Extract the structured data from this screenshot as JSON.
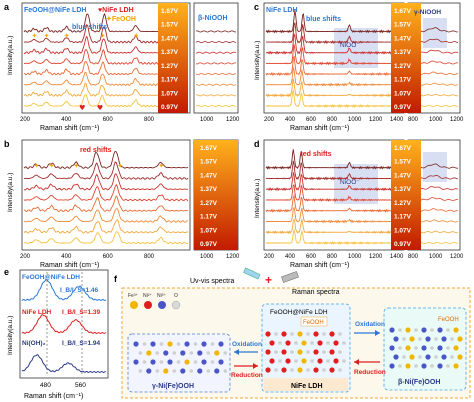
{
  "colors": {
    "curves": [
      "#f6c23e",
      "#f3a83a",
      "#ef8a37",
      "#ea6a34",
      "#e0452f",
      "#c9302c",
      "#a42a2a",
      "#7a2420",
      "#3e1a16"
    ],
    "gradient_top": "#ffa114",
    "gradient_bottom": "#c21b00",
    "feooh_marker": "#f2a400",
    "nife_marker": "#e01e1e",
    "accent_blue": "#2a78d6",
    "accent_red": "#e01e1e",
    "niooh_box": "#c9d1ee"
  },
  "voltages": [
    "1.67V",
    "1.57V",
    "1.47V",
    "1.37V",
    "1.27V",
    "1.17V",
    "1.07V",
    "0.97V"
  ],
  "chart_data": [
    {
      "type": "line",
      "panel": "a",
      "xlabel": "Raman shift (cm⁻¹)",
      "ylabel": "Intensity(a.u.)",
      "xlim": [
        200,
        800
      ],
      "xticks": [
        "200",
        "400",
        "600",
        "800"
      ],
      "xlim_right": [
        800,
        1200
      ],
      "xticks_right": [
        "1000",
        "1200"
      ],
      "legend": [
        "FeOOH@NiFe LDH",
        "NiFe LDH",
        "FeOOH"
      ],
      "annotations": [
        "blue shifts",
        "β-NiOOH"
      ],
      "feooh_peaks": [
        245,
        300,
        390,
        550,
        700
      ],
      "nife_peaks": [
        460,
        540
      ],
      "series": [
        {
          "name": "0.97V",
          "peaks": [
            [
              245,
              0.2
            ],
            [
              300,
              0.3
            ],
            [
              390,
              0.35
            ],
            [
              475,
              0.9
            ],
            [
              550,
              0.8
            ],
            [
              700,
              0.45
            ]
          ]
        },
        {
          "name": "1.07V",
          "peaks": [
            [
              245,
              0.2
            ],
            [
              300,
              0.3
            ],
            [
              390,
              0.35
            ],
            [
              475,
              0.9
            ],
            [
              550,
              0.8
            ],
            [
              700,
              0.45
            ]
          ]
        },
        {
          "name": "1.17V",
          "peaks": [
            [
              245,
              0.2
            ],
            [
              300,
              0.3
            ],
            [
              390,
              0.35
            ],
            [
              475,
              0.95
            ],
            [
              552,
              0.85
            ],
            [
              700,
              0.45
            ]
          ]
        },
        {
          "name": "1.27V",
          "peaks": [
            [
              245,
              0.2
            ],
            [
              300,
              0.3
            ],
            [
              390,
              0.35
            ],
            [
              477,
              1.0
            ],
            [
              553,
              0.9
            ],
            [
              700,
              0.45
            ]
          ]
        },
        {
          "name": "1.37V",
          "peaks": [
            [
              245,
              0.2
            ],
            [
              300,
              0.3
            ],
            [
              390,
              0.35
            ],
            [
              478,
              1.1
            ],
            [
              555,
              1.0
            ],
            [
              700,
              0.45
            ]
          ]
        },
        {
          "name": "1.47V",
          "peaks": [
            [
              245,
              0.2
            ],
            [
              300,
              0.3
            ],
            [
              390,
              0.35
            ],
            [
              480,
              1.2
            ],
            [
              557,
              1.1
            ],
            [
              700,
              0.45
            ]
          ]
        },
        {
          "name": "1.57V",
          "peaks": [
            [
              245,
              0.2
            ],
            [
              300,
              0.3
            ],
            [
              390,
              0.35
            ],
            [
              482,
              1.3
            ],
            [
              558,
              1.2
            ],
            [
              700,
              0.45
            ]
          ]
        },
        {
          "name": "1.67V",
          "peaks": [
            [
              245,
              0.2
            ],
            [
              300,
              0.3
            ],
            [
              390,
              0.35
            ],
            [
              484,
              1.4
            ],
            [
              560,
              1.3
            ],
            [
              700,
              0.45
            ]
          ]
        }
      ]
    },
    {
      "type": "line",
      "panel": "b",
      "xlabel": "Raman shift (cm⁻¹)",
      "ylabel": "Intensity(a.u.)",
      "xlim": [
        200,
        800
      ],
      "xticks": [
        "200",
        "400",
        "600",
        "800"
      ],
      "xlim_right": [
        800,
        1200
      ],
      "xticks_right": [
        "1000",
        "1200"
      ],
      "annotations": [
        "red shifts"
      ],
      "series": [
        {
          "name": "0.97V",
          "peaks": [
            [
              245,
              0.25
            ],
            [
              300,
              0.35
            ],
            [
              390,
              0.4
            ],
            [
              470,
              0.8
            ],
            [
              540,
              0.9
            ],
            [
              700,
              0.4
            ]
          ]
        },
        {
          "name": "1.67V",
          "peaks": [
            [
              245,
              0.25
            ],
            [
              300,
              0.35
            ],
            [
              390,
              0.4
            ],
            [
              465,
              1.2
            ],
            [
              535,
              1.3
            ],
            [
              700,
              0.4
            ]
          ]
        }
      ]
    },
    {
      "type": "line",
      "panel": "c",
      "xlabel": "Raman shift (cm⁻¹)",
      "ylabel": "Intensity(a.u.)",
      "xlim": [
        200,
        1400
      ],
      "xticks": [
        "200",
        "400",
        "600",
        "800",
        "1000",
        "1200",
        "1400"
      ],
      "xlim_right": [
        800,
        1200
      ],
      "xticks_right": [
        "800",
        "1000",
        "1200"
      ],
      "legend": [
        "NiFe LDH"
      ],
      "annotations": [
        "blue shifts",
        "NiOO⁻",
        "γ-NiOOH"
      ],
      "series": [
        {
          "name": "0.97V",
          "peaks": [
            [
              460,
              1.2
            ],
            [
              540,
              1.0
            ]
          ]
        },
        {
          "name": "1.67V",
          "peaks": [
            [
              478,
              1.6
            ],
            [
              556,
              1.4
            ],
            [
              1000,
              0.5
            ]
          ]
        }
      ]
    },
    {
      "type": "line",
      "panel": "d",
      "xlabel": "Raman shift (cm⁻¹)",
      "ylabel": "Intensity(a.u.)",
      "xlim": [
        200,
        1400
      ],
      "xticks": [
        "200",
        "400",
        "600",
        "800",
        "1000",
        "1200",
        "1400"
      ],
      "xlim_right": [
        800,
        1200
      ],
      "xticks_right": [
        "800",
        "1000",
        "1200"
      ],
      "annotations": [
        "red shifts",
        "NiOO⁻"
      ],
      "series": [
        {
          "name": "0.97V",
          "peaks": [
            [
              470,
              1.0
            ],
            [
              545,
              0.9
            ]
          ]
        },
        {
          "name": "1.67V",
          "peaks": [
            [
              462,
              1.4
            ],
            [
              538,
              1.3
            ],
            [
              1000,
              0.4
            ]
          ]
        }
      ]
    },
    {
      "type": "line",
      "panel": "e",
      "xlabel": "Raman shift (cm⁻¹)",
      "ylabel": "Intensity(a.u.)",
      "xlim": [
        420,
        620
      ],
      "xticks": [
        "480",
        "560"
      ],
      "series": [
        {
          "name": "FeOOH@NiFe LDH",
          "ratio": "I_B/I_S=1.46",
          "peaks": [
            [
              478,
              1.0
            ],
            [
              556,
              0.68
            ]
          ]
        },
        {
          "name": "NiFe LDH",
          "ratio": "I_B/I_S=1.39",
          "peaks": [
            [
              470,
              0.9
            ],
            [
              548,
              0.65
            ]
          ]
        },
        {
          "name": "Ni(OH)₂",
          "ratio": "I_B/I_S=1.94",
          "peaks": [
            [
              455,
              0.85
            ],
            [
              530,
              0.44
            ]
          ]
        }
      ]
    }
  ],
  "panel_f": {
    "label": "f",
    "uv_label": "Uv-vis spectra",
    "raman_label": "Raman spectra",
    "plus": "+",
    "legend": [
      "Fe³⁺",
      "Ni²⁺",
      "Ni³⁺",
      "O"
    ],
    "left_label": "γ-Ni(Fe)OOH",
    "center_top_label": "FeOOH@NiFe LDH",
    "center_sub_label": "FeOOH",
    "center_bottom_label": "NiFe LDH",
    "right_label": "β-Ni(Fe)OOH",
    "right_sub_label": "FeOOH",
    "oxidation": "Oxidation",
    "reduction": "Reduction"
  },
  "panel_labels": [
    "a",
    "b",
    "c",
    "d",
    "e",
    "f"
  ]
}
